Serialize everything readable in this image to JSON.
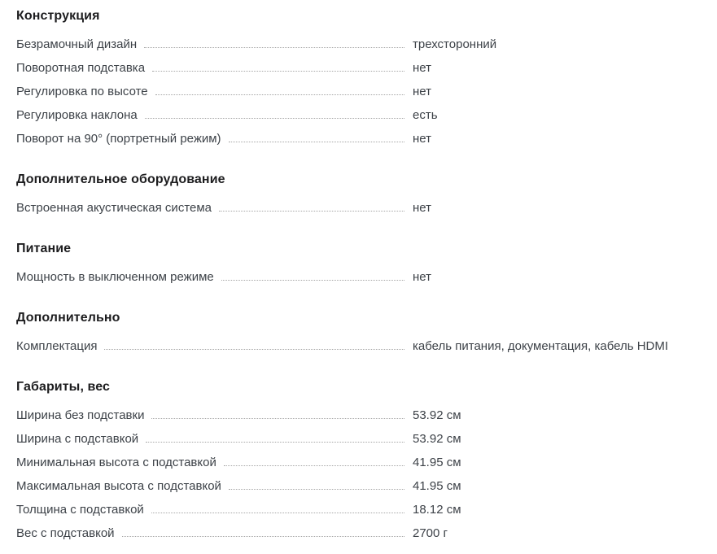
{
  "page": {
    "kind": "product-specifications-table",
    "language": "ru",
    "colors": {
      "background": "#ffffff",
      "heading_text": "#1d1d1f",
      "row_text": "#3d4248",
      "dotted_leader": "#a6a6a6"
    }
  },
  "sections": [
    {
      "title": "Конструкция",
      "rows": [
        {
          "label": "Безрамочный дизайн",
          "value": "трехсторонний"
        },
        {
          "label": "Поворотная подставка",
          "value": "нет"
        },
        {
          "label": "Регулировка по высоте",
          "value": "нет"
        },
        {
          "label": "Регулировка наклона",
          "value": "есть"
        },
        {
          "label": "Поворот на 90° (портретный режим)",
          "value": "нет"
        }
      ]
    },
    {
      "title": "Дополнительное оборудование",
      "rows": [
        {
          "label": "Встроенная акустическая система",
          "value": "нет"
        }
      ]
    },
    {
      "title": "Питание",
      "rows": [
        {
          "label": "Мощность в выключенном режиме",
          "value": "нет"
        }
      ]
    },
    {
      "title": "Дополнительно",
      "rows": [
        {
          "label": "Комплектация",
          "value": "кабель питания, документация, кабель HDMI"
        }
      ]
    },
    {
      "title": "Габариты, вес",
      "rows": [
        {
          "label": "Ширина без подставки",
          "value": "53.92 см"
        },
        {
          "label": "Ширина с подставкой",
          "value": "53.92 см"
        },
        {
          "label": "Минимальная высота с подставкой",
          "value": "41.95 см"
        },
        {
          "label": "Максимальная высота с подставкой",
          "value": "41.95 см"
        },
        {
          "label": "Толщина с подставкой",
          "value": "18.12 см"
        },
        {
          "label": "Вес с подставкой",
          "value": "2700 г"
        }
      ]
    }
  ]
}
